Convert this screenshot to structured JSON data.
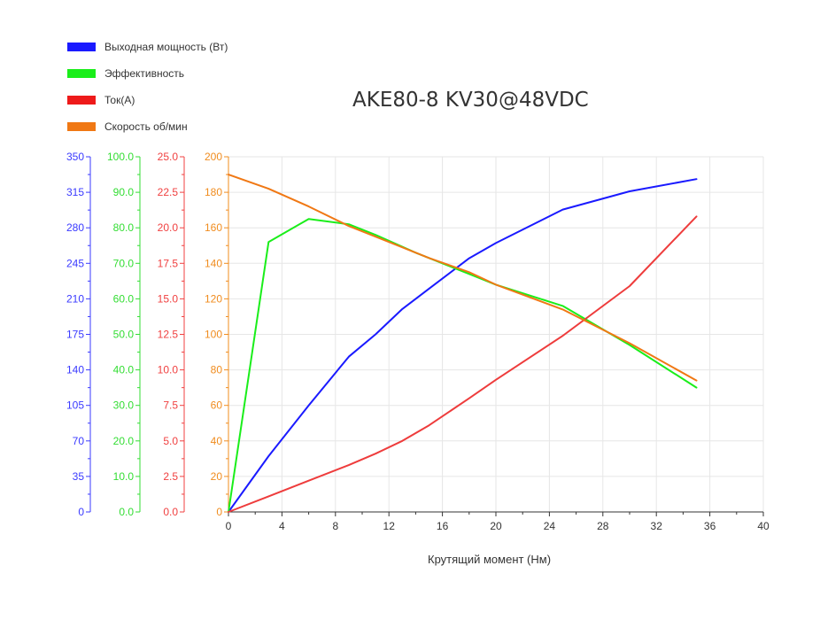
{
  "chart_data": {
    "type": "line",
    "title": "AKE80-8 KV30@48VDC",
    "xlabel": "Крутящий момент (Нм)",
    "xlim": [
      0,
      40
    ],
    "xticks": [
      "0",
      "4",
      "8",
      "12",
      "16",
      "20",
      "24",
      "28",
      "32",
      "36",
      "40"
    ],
    "legend_position": "top-left",
    "grid": true,
    "axes": [
      {
        "id": "power",
        "color": "#3a3aff",
        "ylim": [
          0,
          350
        ],
        "ticks": [
          "0",
          "35",
          "70",
          "105",
          "140",
          "175",
          "210",
          "245",
          "280",
          "315",
          "350"
        ]
      },
      {
        "id": "efficiency",
        "color": "#33dd33",
        "ylim": [
          0,
          100
        ],
        "ticks": [
          "0.0",
          "10.0",
          "20.0",
          "30.0",
          "40.0",
          "50.0",
          "60.0",
          "70.0",
          "80.0",
          "90.0",
          "100.0"
        ]
      },
      {
        "id": "current",
        "color": "#f04040",
        "ylim": [
          0,
          25
        ],
        "ticks": [
          "0.0",
          "2.5",
          "5.0",
          "7.5",
          "10.0",
          "12.5",
          "15.0",
          "17.5",
          "20.0",
          "22.5",
          "25.0"
        ]
      },
      {
        "id": "speed",
        "color": "#f08c1e",
        "ylim": [
          0,
          200
        ],
        "ticks": [
          "0",
          "20",
          "40",
          "60",
          "80",
          "100",
          "120",
          "140",
          "160",
          "180",
          "200"
        ]
      }
    ],
    "series": [
      {
        "name": "Выходная мощность (Вт)",
        "axis": "power",
        "color": "#1a1aff",
        "x": [
          0,
          3,
          6,
          9,
          11,
          13,
          15,
          18,
          20,
          25,
          30,
          35
        ],
        "y": [
          0,
          55,
          105,
          153,
          175,
          200,
          220,
          250,
          265,
          298,
          316,
          328
        ]
      },
      {
        "name": "Эффективность",
        "axis": "efficiency",
        "color": "#1aee1a",
        "x": [
          0,
          3,
          6,
          9,
          11,
          14,
          18,
          20,
          25,
          30,
          35
        ],
        "y": [
          0,
          76,
          82.5,
          81,
          78,
          73,
          67,
          64,
          58,
          47,
          35
        ]
      },
      {
        "name": "Ток(А)",
        "axis": "current",
        "color": "#ee3c3c",
        "x": [
          0,
          3,
          6,
          9,
          11,
          13,
          15,
          18,
          20,
          25,
          30,
          35
        ],
        "y": [
          0,
          1.1,
          2.2,
          3.3,
          4.1,
          5.0,
          6.1,
          8.0,
          9.3,
          12.4,
          15.9,
          20.8
        ]
      },
      {
        "name": "Скорость об/мин",
        "axis": "speed",
        "color": "#f07814",
        "x": [
          0,
          3,
          6,
          9,
          12,
          15,
          18,
          20,
          25,
          30,
          35
        ],
        "y": [
          190,
          182,
          172,
          161,
          152,
          143,
          135,
          128,
          114,
          95,
          74
        ]
      }
    ]
  }
}
